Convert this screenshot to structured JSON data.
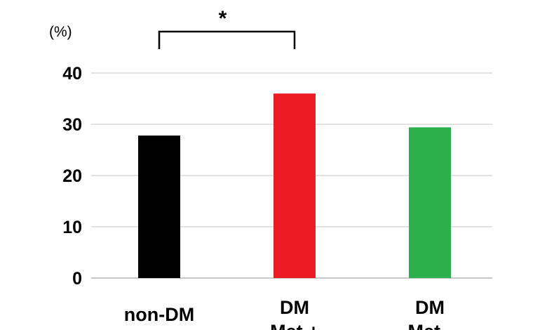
{
  "chart_data": {
    "type": "bar",
    "ylabel": "(%)",
    "ylim": [
      0,
      40
    ],
    "yticks": [
      0,
      10,
      20,
      30,
      40
    ],
    "grid": true,
    "categories": [
      "non-DM",
      "DM\nMet +",
      "DM\nMet -"
    ],
    "values": [
      27.8,
      36.0,
      29.4
    ],
    "colors": [
      "#000000",
      "#ec1c24",
      "#2cb04e"
    ],
    "significance": {
      "from_category": 0,
      "to_category": 1,
      "label": "*"
    }
  }
}
